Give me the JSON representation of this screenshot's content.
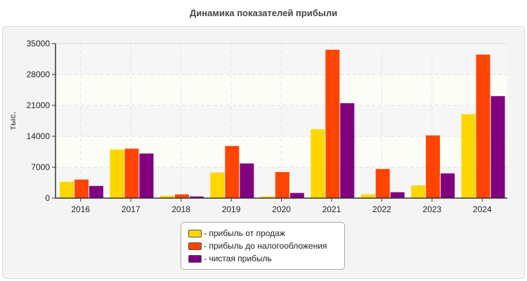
{
  "chart_data": {
    "type": "bar",
    "title": "Динамика показателей прибыли",
    "ylabel": "тыс.",
    "xlabel": "",
    "ylim": [
      0,
      35000
    ],
    "yticks": [
      0,
      7000,
      14000,
      21000,
      28000,
      35000
    ],
    "grid": true,
    "legend_position": "bottom",
    "categories": [
      "2016",
      "2017",
      "2018",
      "2019",
      "2020",
      "2021",
      "2022",
      "2023",
      "2024"
    ],
    "series": [
      {
        "name": "- прибыль от продаж",
        "color": "#FFD700",
        "values": [
          3700,
          11000,
          530,
          5800,
          370,
          15600,
          850,
          2900,
          19000
        ]
      },
      {
        "name": "- прибыль до налогообложения",
        "color": "#FF4500",
        "values": [
          4200,
          11200,
          850,
          11800,
          5900,
          33600,
          6600,
          14200,
          32500
        ]
      },
      {
        "name": "- чистая прибыль",
        "color": "#800080",
        "values": [
          2750,
          10100,
          370,
          7850,
          1170,
          21500,
          1330,
          5600,
          23100
        ]
      }
    ]
  }
}
